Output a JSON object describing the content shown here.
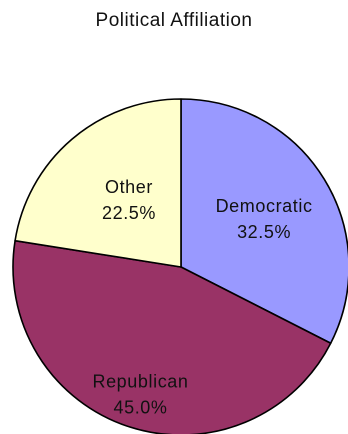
{
  "chart_data": {
    "type": "pie",
    "title": "Political Affiliation",
    "start_angle_deg": 0,
    "direction": "clockwise",
    "slices": [
      {
        "label": "Democratic",
        "value": 32.5,
        "value_label": "32.5%",
        "color": "#9999ff"
      },
      {
        "label": "Republican",
        "value": 45.0,
        "value_label": "45.0%",
        "color": "#993366"
      },
      {
        "label": "Other",
        "value": 22.5,
        "value_label": "22.5%",
        "color": "#ffffcc"
      }
    ]
  }
}
